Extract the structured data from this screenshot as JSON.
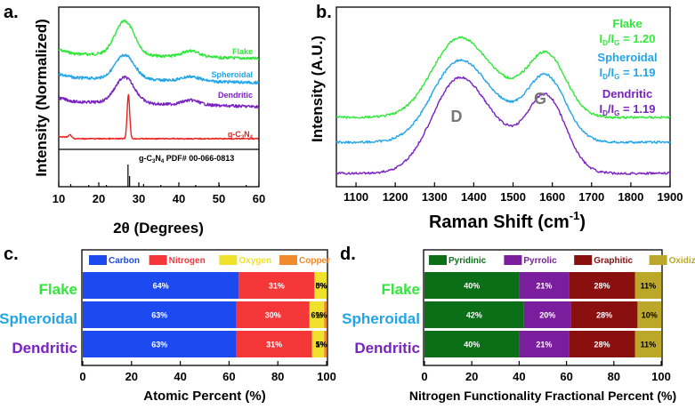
{
  "colors": {
    "flake": "#31e83a",
    "spheroidal": "#22a5e8",
    "dendritic": "#7a22c2",
    "gc3n4": "#e8231f",
    "carbon": "#1d49f0",
    "nitrogen": "#f5373a",
    "oxygen": "#efe12c",
    "copper": "#f08a2c",
    "pyridinic": "#0b6f18",
    "pyrrolic": "#7a1e9e",
    "graphitic": "#8a1010",
    "oxidized": "#bba82a",
    "peak_label": "#777777"
  },
  "chart_data": [
    {
      "panel": "a.",
      "type": "line",
      "title": "",
      "xlabel": "2θ (Degrees)",
      "ylabel": "Intensity (Normalized)",
      "xlim": [
        10,
        60
      ],
      "xticks": [
        "10",
        "20",
        "30",
        "40",
        "50",
        "60"
      ],
      "series": [
        {
          "name": "Flake",
          "peak_2theta": 26.5,
          "profile": "broad"
        },
        {
          "name": "Spheroidal",
          "peak_2theta": 26.5,
          "profile": "broad"
        },
        {
          "name": "Dendritic",
          "peak_2theta": 26.5,
          "profile": "broad"
        },
        {
          "name": "g-C3N4",
          "peak_2theta": 27.4,
          "profile": "sharp"
        }
      ],
      "reference": {
        "name": "g-C3N4 PDF# 00-066-0813",
        "lines_2theta": [
          13.0,
          17.5,
          21.9,
          27.3,
          27.7,
          31.2,
          35.5,
          44.2,
          50.1,
          56.8
        ]
      }
    },
    {
      "panel": "b.",
      "type": "line",
      "title": "",
      "xlabel": "Raman Shift (cm-1)",
      "ylabel": "Intensity (A.U.)",
      "xlim": [
        1050,
        1900
      ],
      "xticks": [
        "1100",
        "1200",
        "1300",
        "1400",
        "1500",
        "1600",
        "1700",
        "1800",
        "1900"
      ],
      "peaks": [
        {
          "label": "D",
          "position": 1360
        },
        {
          "label": "G",
          "position": 1585
        }
      ],
      "series": [
        {
          "name": "Flake",
          "ratio_text": "ID/IG = 1.20",
          "id_ig": 1.2
        },
        {
          "name": "Spheroidal",
          "ratio_text": "ID/IG = 1.19",
          "id_ig": 1.19
        },
        {
          "name": "Dendritic",
          "ratio_text": "ID/IG = 1.19",
          "id_ig": 1.19
        }
      ]
    },
    {
      "panel": "c.",
      "type": "bar",
      "orientation": "horizontal-stacked",
      "xlabel": "Atomic Percent (%)",
      "xlim": [
        0,
        100
      ],
      "xticks": [
        "0",
        "20",
        "40",
        "60",
        "80",
        "100"
      ],
      "categories": [
        "Flake",
        "Spheroidal",
        "Dendritic"
      ],
      "series": [
        {
          "name": "Carbon",
          "values": [
            64,
            63,
            63
          ],
          "labels": [
            "64%",
            "63%",
            "63%"
          ]
        },
        {
          "name": "Nitrogen",
          "values": [
            31,
            30,
            31
          ],
          "labels": [
            "31%",
            "30%",
            "31%"
          ]
        },
        {
          "name": "Oxygen",
          "values": [
            5,
            6,
            5
          ],
          "labels": [
            "5%",
            "6%",
            "5%"
          ]
        },
        {
          "name": "Copper",
          "values": [
            0,
            1,
            1
          ],
          "labels": [
            "0%",
            "1%",
            "1%"
          ]
        }
      ]
    },
    {
      "panel": "d.",
      "type": "bar",
      "orientation": "horizontal-stacked",
      "xlabel": "Nitrogen Functionality Fractional Percent (%)",
      "xlim": [
        0,
        100
      ],
      "xticks": [
        "0",
        "20",
        "40",
        "60",
        "80",
        "100"
      ],
      "categories": [
        "Flake",
        "Spheroidal",
        "Dendritic"
      ],
      "series": [
        {
          "name": "Pyridinic",
          "values": [
            40,
            42,
            40
          ],
          "labels": [
            "40%",
            "42%",
            "40%"
          ]
        },
        {
          "name": "Pyrrolic",
          "values": [
            21,
            20,
            21
          ],
          "labels": [
            "21%",
            "20%",
            "21%"
          ]
        },
        {
          "name": "Graphitic",
          "values": [
            28,
            28,
            28
          ],
          "labels": [
            "28%",
            "28%",
            "28%"
          ]
        },
        {
          "name": "Oxidized",
          "values": [
            11,
            10,
            11
          ],
          "labels": [
            "11%",
            "10%",
            "11%"
          ]
        }
      ]
    }
  ]
}
